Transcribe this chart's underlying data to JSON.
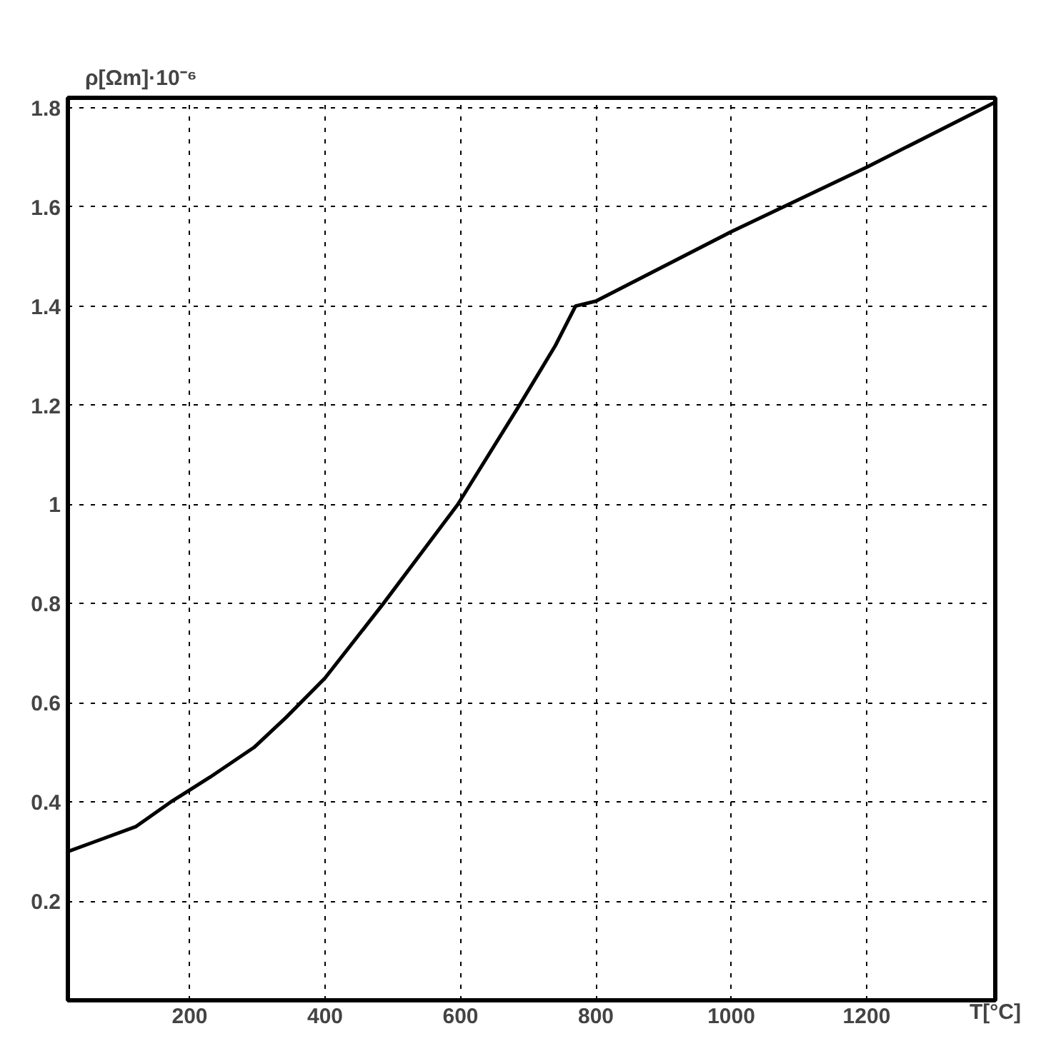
{
  "chart_data": {
    "type": "line",
    "xlabel": "T[°C]",
    "ylabel": "ρ[Ωm]·10⁻⁶",
    "x": [
      20,
      60,
      120,
      172,
      230,
      295,
      342,
      400,
      486,
      596,
      687,
      740,
      770,
      800,
      1000,
      1200,
      1388
    ],
    "series": [
      {
        "color": "#000000",
        "values": [
          0.3,
          0.32,
          0.35,
          0.4,
          0.45,
          0.51,
          0.57,
          0.65,
          0.8,
          1.0,
          1.2,
          1.32,
          1.4,
          1.41,
          1.55,
          1.68,
          1.81
        ]
      }
    ],
    "xlim": [
      20,
      1390
    ],
    "ylim": [
      0,
      1.82
    ],
    "xticks": [
      200,
      400,
      600,
      800,
      1000,
      1200
    ],
    "yticks": [
      0.2,
      0.4,
      0.6,
      0.8,
      1,
      1.2,
      1.4,
      1.6,
      1.8
    ],
    "grid": true,
    "marker": "none",
    "line_style": "solid"
  }
}
